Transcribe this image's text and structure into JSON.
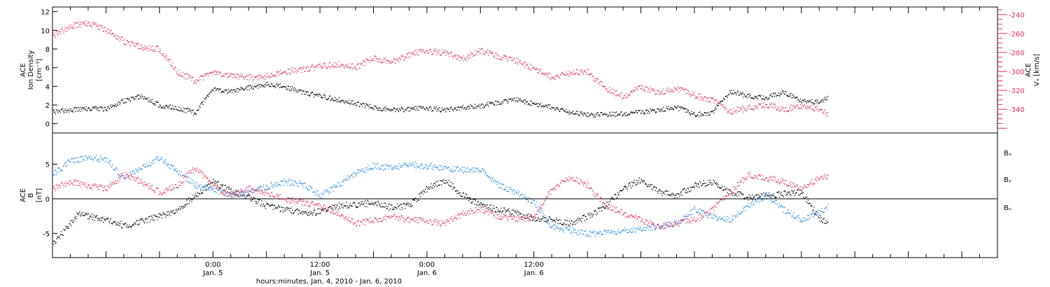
{
  "chart_data": [
    {
      "type": "scatter",
      "panel": "top",
      "ylabel_left": [
        "ACE",
        "Ion Density",
        "[cm⁻³]"
      ],
      "ylabel_right": [
        "ACE",
        "Vₓ [km/s]"
      ],
      "ylim_left": [
        -1,
        12.5
      ],
      "ylim_right": [
        -365,
        -232
      ],
      "left_ticks": [
        0,
        2,
        4,
        6,
        8,
        10,
        12
      ],
      "right_ticks": [
        -240,
        -260,
        -280,
        -300,
        -320,
        -340
      ],
      "x_units": "hours since 2010-01-04 00:00",
      "series": [
        {
          "color": "#000000",
          "axis": "left",
          "x": [
            0,
            2,
            4,
            6,
            8,
            10,
            12,
            14,
            16,
            18,
            20,
            22,
            24,
            26,
            28,
            30,
            32,
            34,
            36,
            38,
            40,
            42,
            44,
            46,
            48,
            50,
            52,
            54,
            56,
            58,
            60,
            62,
            64,
            66,
            68,
            70,
            72,
            74,
            76,
            78,
            80,
            82,
            84,
            86,
            87
          ],
          "y": [
            1.3,
            1.5,
            1.7,
            1.6,
            2.5,
            3.0,
            2.0,
            1.7,
            1.2,
            3.8,
            3.5,
            3.9,
            4.3,
            4.0,
            3.4,
            3.0,
            2.6,
            2.2,
            1.8,
            1.5,
            1.6,
            1.7,
            1.5,
            1.8,
            1.9,
            2.3,
            2.6,
            2.2,
            1.8,
            1.2,
            1.0,
            1.0,
            1.1,
            1.3,
            1.5,
            1.8,
            1.0,
            1.2,
            3.5,
            3.0,
            2.8,
            3.4,
            2.5,
            2.3,
            3.0
          ]
        },
        {
          "color": "#e0305c",
          "axis": "right",
          "x": [
            0,
            2,
            4,
            6,
            8,
            10,
            12,
            14,
            16,
            18,
            20,
            22,
            24,
            26,
            28,
            30,
            32,
            34,
            36,
            38,
            40,
            42,
            44,
            46,
            48,
            50,
            52,
            54,
            56,
            58,
            60,
            62,
            64,
            66,
            68,
            70,
            72,
            74,
            76,
            78,
            80,
            82,
            84,
            86,
            87
          ],
          "y": [
            -262,
            -252,
            -248,
            -256,
            -268,
            -274,
            -276,
            -300,
            -310,
            -300,
            -304,
            -306,
            -304,
            -300,
            -298,
            -294,
            -292,
            -295,
            -285,
            -290,
            -282,
            -278,
            -280,
            -286,
            -278,
            -284,
            -289,
            -296,
            -306,
            -302,
            -300,
            -318,
            -326,
            -316,
            -322,
            -318,
            -325,
            -330,
            -342,
            -338,
            -335,
            -340,
            -336,
            -340,
            -344
          ]
        }
      ]
    },
    {
      "type": "scatter",
      "panel": "bottom",
      "ylabel_left": [
        "ACE",
        "B",
        "[nT]"
      ],
      "ylim": [
        -8.5,
        9.5
      ],
      "left_ticks": [
        5,
        0,
        -5
      ],
      "x_units": "hours since 2010-01-04 00:00",
      "xlabel": "hours:minutes, Jan.  4, 2010 - Jan.  6, 2010",
      "x_range": [
        0,
        106
      ],
      "x_ticks": [
        {
          "x": 18,
          "time": "0:00",
          "date": "Jan. 5"
        },
        {
          "x": 30,
          "time": "12:00",
          "date": "Jan. 5"
        },
        {
          "x": 42,
          "time": "0:00",
          "date": "Jan. 6"
        },
        {
          "x": 54,
          "time": "12:00",
          "date": "Jan. 6"
        }
      ],
      "legend": [
        "Bₓ",
        "Bᵧ",
        "Bᵤ"
      ],
      "legend_placement": "right",
      "series": [
        {
          "name": "Bₓ",
          "color": "#000000",
          "x": [
            0,
            1,
            2,
            3,
            4,
            6,
            8,
            10,
            12,
            14,
            16,
            18,
            20,
            22,
            24,
            26,
            28,
            30,
            32,
            34,
            36,
            38,
            40,
            42,
            44,
            46,
            48,
            50,
            52,
            54,
            56,
            58,
            60,
            62,
            64,
            66,
            68,
            70,
            72,
            74,
            76,
            78,
            80,
            82,
            84,
            86,
            87
          ],
          "y": [
            -6.5,
            -5.0,
            -3.5,
            -2.0,
            -2.5,
            -3.0,
            -3.8,
            -3.2,
            -2.5,
            -1.5,
            0.5,
            2.5,
            1.2,
            0.3,
            -1.0,
            -1.5,
            -2.0,
            -1.8,
            -1.0,
            -0.8,
            -0.5,
            -1.2,
            -0.9,
            1.5,
            2.8,
            0.5,
            -0.8,
            -1.5,
            -2.0,
            -2.8,
            -3.0,
            -3.5,
            -2.5,
            -1.0,
            1.5,
            2.8,
            1.0,
            0.5,
            2.0,
            2.5,
            1.0,
            0.3,
            0.5,
            0.8,
            1.0,
            -2.8,
            -3.2
          ]
        },
        {
          "name": "Bᵧ",
          "color": "#2a8be0",
          "x": [
            0,
            2,
            4,
            6,
            8,
            10,
            12,
            14,
            16,
            18,
            20,
            22,
            24,
            26,
            28,
            30,
            32,
            34,
            36,
            38,
            40,
            42,
            44,
            46,
            48,
            50,
            52,
            54,
            56,
            58,
            60,
            62,
            64,
            66,
            68,
            70,
            72,
            74,
            76,
            78,
            80,
            82,
            84,
            86,
            87
          ],
          "y": [
            3.5,
            5.5,
            6.0,
            5.8,
            3.0,
            4.5,
            6.0,
            4.0,
            2.0,
            1.5,
            0.5,
            1.0,
            1.8,
            2.5,
            2.2,
            0.5,
            2.0,
            3.8,
            4.8,
            4.5,
            5.0,
            4.8,
            4.5,
            4.2,
            4.3,
            2.0,
            1.0,
            -0.5,
            -4.0,
            -4.5,
            -5.0,
            -4.8,
            -4.6,
            -4.2,
            -4.0,
            -3.5,
            -1.5,
            -2.5,
            -3.0,
            -1.0,
            0.5,
            -1.5,
            -3.0,
            -2.0,
            -1.0
          ]
        },
        {
          "name": "Bᵤ",
          "color": "#e0305c",
          "x": [
            0,
            2,
            4,
            6,
            8,
            10,
            12,
            14,
            16,
            18,
            20,
            22,
            24,
            26,
            28,
            30,
            32,
            34,
            36,
            38,
            40,
            42,
            44,
            46,
            48,
            50,
            52,
            54,
            56,
            58,
            60,
            62,
            64,
            66,
            68,
            70,
            72,
            74,
            76,
            78,
            80,
            82,
            84,
            86,
            87
          ],
          "y": [
            1.5,
            2.5,
            2.0,
            1.5,
            3.5,
            2.5,
            1.0,
            2.0,
            4.5,
            2.0,
            0.5,
            1.5,
            1.0,
            0.0,
            -0.5,
            -1.0,
            -2.0,
            -3.5,
            -3.0,
            -2.5,
            -3.0,
            -3.2,
            -3.5,
            -2.0,
            -1.5,
            -2.5,
            -3.0,
            -2.5,
            1.5,
            3.0,
            2.0,
            -1.0,
            -2.0,
            -3.0,
            -4.0,
            -3.5,
            -3.0,
            -1.5,
            1.0,
            3.5,
            3.0,
            2.5,
            1.5,
            3.0,
            3.5
          ]
        }
      ]
    }
  ]
}
